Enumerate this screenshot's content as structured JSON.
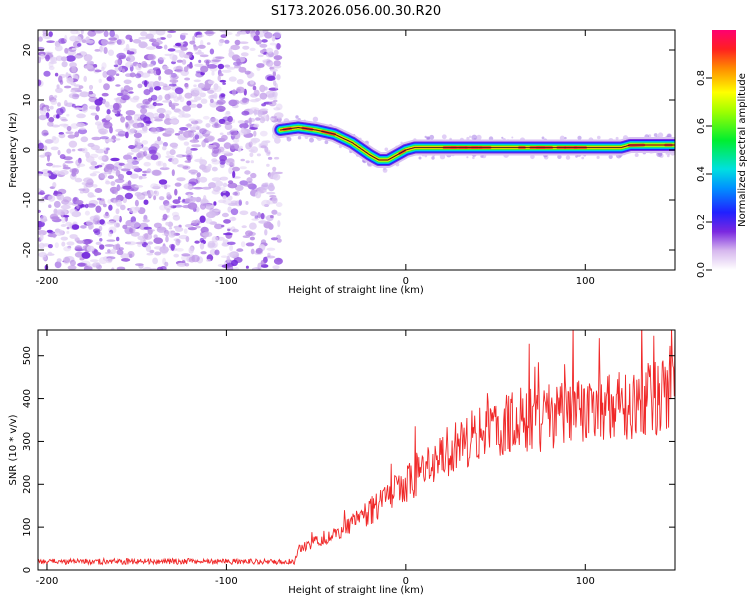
{
  "title": "S173.2026.056.00.30.R20",
  "chart_data": [
    {
      "type": "heatmap",
      "xlabel": "Height of straight line (km)",
      "ylabel": "Frequency (Hz)",
      "xlim": [
        -205,
        150
      ],
      "ylim": [
        -24,
        24
      ],
      "x_ticks": [
        -200,
        -100,
        0,
        100
      ],
      "y_ticks": [
        -20,
        -10,
        0,
        10,
        20
      ],
      "colorbar": {
        "label": "Normalized spectral amplitude",
        "range": [
          0,
          1
        ],
        "ticks": [
          0.0,
          0.2,
          0.4,
          0.6,
          0.8
        ]
      },
      "noise_region_x": [
        -205,
        -70
      ],
      "ridge": {
        "x": [
          -70,
          -60,
          -50,
          -40,
          -30,
          -20,
          -15,
          -10,
          -5,
          0,
          5,
          10,
          20,
          40,
          60,
          80,
          100,
          120,
          125,
          150
        ],
        "freq_hz": [
          4.0,
          4.5,
          4.0,
          3.2,
          1.5,
          -1.0,
          -2.0,
          -2.0,
          -1.0,
          0.0,
          0.5,
          0.5,
          0.5,
          0.5,
          0.5,
          0.5,
          0.5,
          0.5,
          1.0,
          1.0
        ]
      }
    },
    {
      "type": "line",
      "xlabel": "Height of straight line (km)",
      "ylabel": "SNR (10 * v/v)",
      "xlim": [
        -205,
        150
      ],
      "ylim": [
        0,
        560
      ],
      "x_ticks": [
        -200,
        -100,
        0,
        100
      ],
      "y_ticks": [
        0,
        100,
        200,
        300,
        400,
        500
      ],
      "series": [
        {
          "name": "SNR",
          "color": "#f02828",
          "trend": {
            "x": [
              -205,
              -150,
              -100,
              -62,
              -60,
              -40,
              -20,
              0,
              20,
              40,
              60,
              80,
              100,
              120,
              150
            ],
            "y": [
              20,
              20,
              20,
              20,
              50,
              85,
              135,
              200,
              270,
              320,
              340,
              355,
              370,
              385,
              410
            ]
          },
          "peak_max": 560
        }
      ]
    }
  ]
}
